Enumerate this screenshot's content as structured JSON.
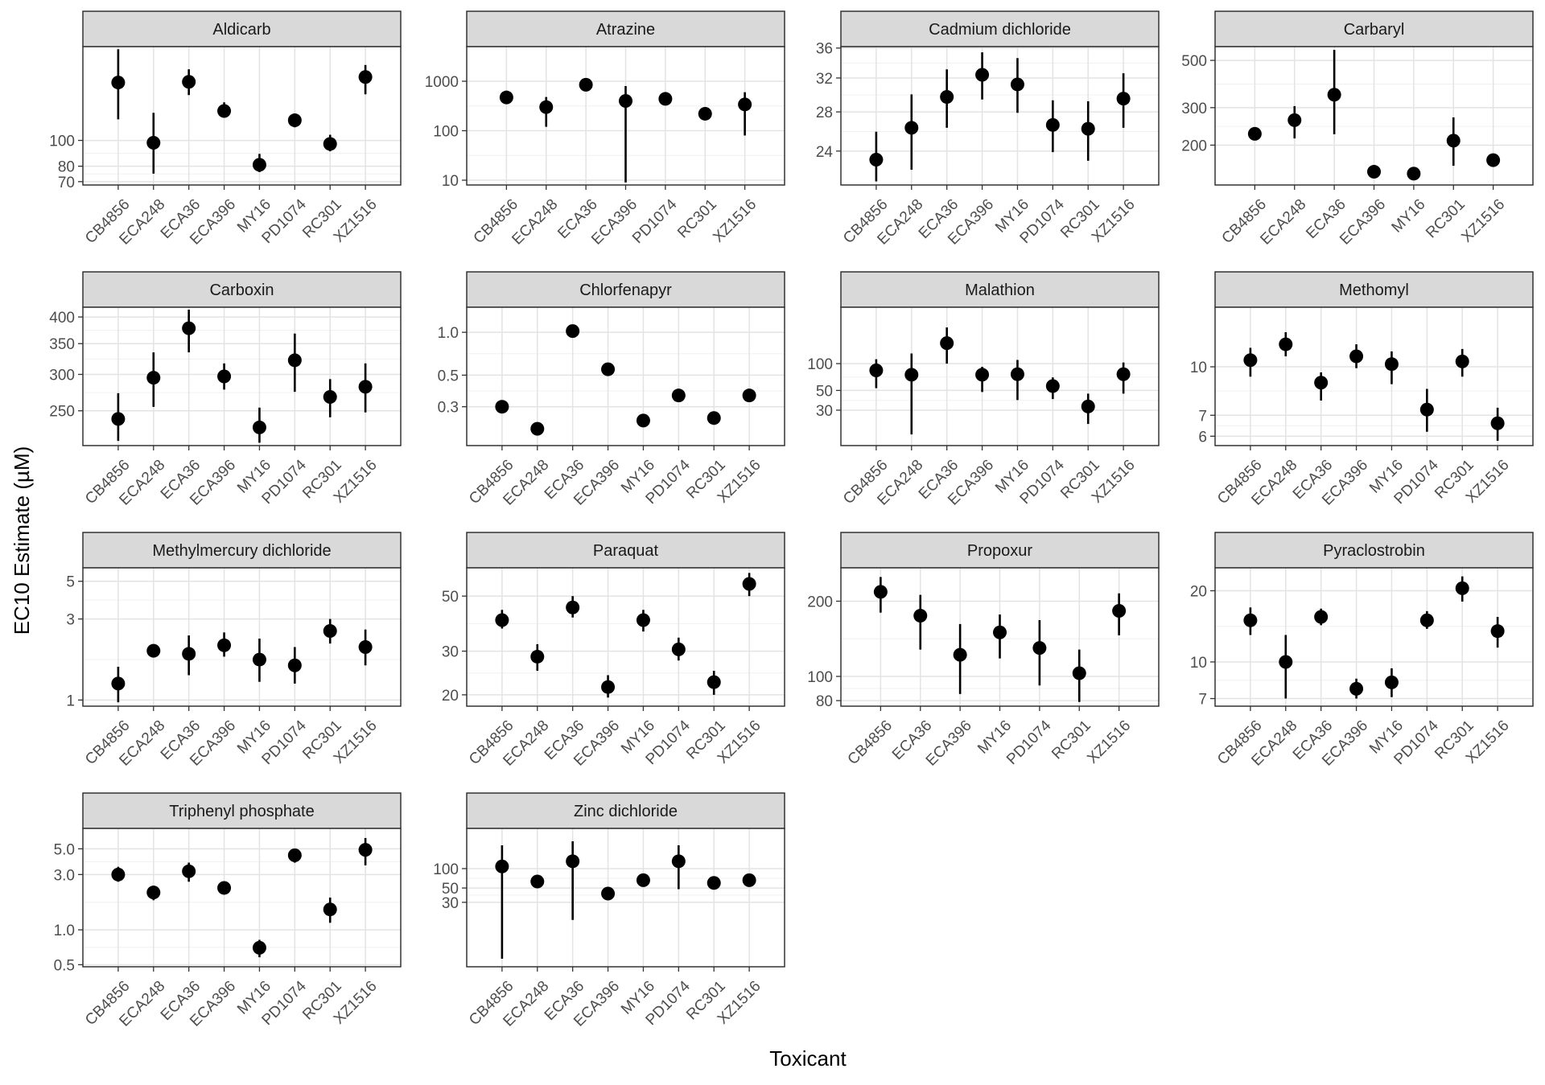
{
  "chart_data": {
    "type": "scatter",
    "subtype": "faceted point-range (point estimate with interval bars)",
    "xlabel": "Toxicant",
    "ylabel": "EC10 Estimate (µM)",
    "y_scale": "log",
    "grid": true,
    "legend": "none",
    "panels": [
      {
        "title": "Aldicarb",
        "ylim": [
          68,
          225
        ],
        "yticks": [
          70,
          80,
          100
        ],
        "points": [
          {
            "x": "CB4856",
            "y": 165,
            "lo": 120,
            "hi": 220
          },
          {
            "x": "ECA248",
            "y": 98,
            "lo": 75,
            "hi": 127
          },
          {
            "x": "ECA36",
            "y": 166,
            "lo": 148,
            "hi": 185
          },
          {
            "x": "ECA396",
            "y": 129,
            "lo": 122,
            "hi": 139
          },
          {
            "x": "MY16",
            "y": 81,
            "lo": 76,
            "hi": 89
          },
          {
            "x": "PD1074",
            "y": 119,
            "lo": 112,
            "hi": 126
          },
          {
            "x": "RC301",
            "y": 97,
            "lo": 91,
            "hi": 105
          },
          {
            "x": "XZ1516",
            "y": 173,
            "lo": 149,
            "hi": 192
          }
        ]
      },
      {
        "title": "Atrazine",
        "ylim": [
          8,
          5000
        ],
        "yticks": [
          10,
          100,
          1000
        ],
        "points": [
          {
            "x": "CB4856",
            "y": 470
          },
          {
            "x": "ECA248",
            "y": 300,
            "lo": 120,
            "hi": 480
          },
          {
            "x": "ECA36",
            "y": 850
          },
          {
            "x": "ECA396",
            "y": 400,
            "lo": 9,
            "hi": 800
          },
          {
            "x": "PD1074",
            "y": 440
          },
          {
            "x": "RC301",
            "y": 220
          },
          {
            "x": "XZ1516",
            "y": 340,
            "lo": 80,
            "hi": 600
          }
        ]
      },
      {
        "title": "Cadmium dichloride",
        "ylim": [
          21,
          36.2
        ],
        "yticks": [
          24,
          28,
          32,
          36
        ],
        "points": [
          {
            "x": "CB4856",
            "y": 23.2,
            "lo": 21.3,
            "hi": 25.9
          },
          {
            "x": "ECA248",
            "y": 26.3,
            "lo": 22.3,
            "hi": 30.0
          },
          {
            "x": "ECA36",
            "y": 29.7,
            "lo": 26.3,
            "hi": 33.1
          },
          {
            "x": "ECA396",
            "y": 32.4,
            "lo": 29.4,
            "hi": 35.4
          },
          {
            "x": "MY16",
            "y": 31.2,
            "lo": 27.9,
            "hi": 34.6
          },
          {
            "x": "PD1074",
            "y": 26.6,
            "lo": 23.9,
            "hi": 29.3
          },
          {
            "x": "RC301",
            "y": 26.2,
            "lo": 23.1,
            "hi": 29.2
          },
          {
            "x": "XZ1516",
            "y": 29.5,
            "lo": 26.3,
            "hi": 32.6
          }
        ]
      },
      {
        "title": "Carbaryl",
        "ylim": [
          130,
          580
        ],
        "yticks": [
          200,
          300,
          500
        ],
        "points": [
          {
            "x": "CB4856",
            "y": 226
          },
          {
            "x": "ECA248",
            "y": 262,
            "lo": 215,
            "hi": 305
          },
          {
            "x": "ECA36",
            "y": 345,
            "lo": 225,
            "hi": 560
          },
          {
            "x": "ECA396",
            "y": 150
          },
          {
            "x": "MY16",
            "y": 147
          },
          {
            "x": "RC301",
            "y": 210,
            "lo": 160,
            "hi": 270
          },
          {
            "x": "XZ1516",
            "y": 170
          }
        ]
      },
      {
        "title": "Carboxin",
        "ylim": [
          210,
          420
        ],
        "yticks": [
          250,
          300,
          350,
          400
        ],
        "points": [
          {
            "x": "CB4856",
            "y": 240,
            "lo": 215,
            "hi": 273
          },
          {
            "x": "ECA248",
            "y": 295,
            "lo": 255,
            "hi": 335
          },
          {
            "x": "ECA36",
            "y": 378,
            "lo": 335,
            "hi": 415
          },
          {
            "x": "ECA396",
            "y": 297,
            "lo": 278,
            "hi": 317
          },
          {
            "x": "MY16",
            "y": 230,
            "lo": 213,
            "hi": 254
          },
          {
            "x": "PD1074",
            "y": 322,
            "lo": 275,
            "hi": 368
          },
          {
            "x": "RC301",
            "y": 268,
            "lo": 242,
            "hi": 293
          },
          {
            "x": "XZ1516",
            "y": 282,
            "lo": 248,
            "hi": 317
          }
        ]
      },
      {
        "title": "Chlorfenapyr",
        "ylim": [
          0.16,
          1.5
        ],
        "yticks": [
          0.3,
          0.5,
          1.0
        ],
        "ytick_labels": [
          "0.3",
          "0.5",
          "1.0"
        ],
        "points": [
          {
            "x": "CB4856",
            "y": 0.3
          },
          {
            "x": "ECA248",
            "y": 0.21
          },
          {
            "x": "ECA36",
            "y": 1.02
          },
          {
            "x": "ECA396",
            "y": 0.55
          },
          {
            "x": "MY16",
            "y": 0.24
          },
          {
            "x": "PD1074",
            "y": 0.36
          },
          {
            "x": "RC301",
            "y": 0.25
          },
          {
            "x": "XZ1516",
            "y": 0.36
          }
        ]
      },
      {
        "title": "Malathion",
        "ylim": [
          12,
          430
        ],
        "yticks": [
          30,
          50,
          100
        ],
        "points": [
          {
            "x": "CB4856",
            "y": 84,
            "lo": 53,
            "hi": 112
          },
          {
            "x": "ECA248",
            "y": 75,
            "lo": 16,
            "hi": 130
          },
          {
            "x": "ECA36",
            "y": 170,
            "lo": 100,
            "hi": 255
          },
          {
            "x": "ECA396",
            "y": 75,
            "lo": 48,
            "hi": 92
          },
          {
            "x": "MY16",
            "y": 76,
            "lo": 39,
            "hi": 110
          },
          {
            "x": "PD1074",
            "y": 56,
            "lo": 40,
            "hi": 70
          },
          {
            "x": "RC301",
            "y": 33,
            "lo": 21,
            "hi": 46
          },
          {
            "x": "XZ1516",
            "y": 76,
            "lo": 46,
            "hi": 103
          }
        ]
      },
      {
        "title": "Methomyl",
        "ylim": [
          5.6,
          15.5
        ],
        "yticks": [
          6,
          7,
          10
        ],
        "points": [
          {
            "x": "CB4856",
            "y": 10.5,
            "lo": 9.3,
            "hi": 11.5
          },
          {
            "x": "ECA248",
            "y": 11.8,
            "lo": 10.8,
            "hi": 12.9
          },
          {
            "x": "ECA36",
            "y": 8.9,
            "lo": 7.8,
            "hi": 9.6
          },
          {
            "x": "ECA396",
            "y": 10.8,
            "lo": 9.9,
            "hi": 11.8
          },
          {
            "x": "MY16",
            "y": 10.2,
            "lo": 8.8,
            "hi": 11.2
          },
          {
            "x": "PD1074",
            "y": 7.3,
            "lo": 6.2,
            "hi": 8.5
          },
          {
            "x": "RC301",
            "y": 10.4,
            "lo": 9.3,
            "hi": 11.4
          },
          {
            "x": "XZ1516",
            "y": 6.6,
            "lo": 5.8,
            "hi": 7.4
          }
        ]
      },
      {
        "title": "Methylmercury dichloride",
        "ylim": [
          0.92,
          6.0
        ],
        "yticks": [
          1,
          3,
          5
        ],
        "points": [
          {
            "x": "CB4856",
            "y": 1.25,
            "lo": 0.97,
            "hi": 1.57
          },
          {
            "x": "ECA248",
            "y": 1.95
          },
          {
            "x": "ECA36",
            "y": 1.87,
            "lo": 1.4,
            "hi": 2.4
          },
          {
            "x": "ECA396",
            "y": 2.1,
            "lo": 1.8,
            "hi": 2.5
          },
          {
            "x": "MY16",
            "y": 1.73,
            "lo": 1.28,
            "hi": 2.3
          },
          {
            "x": "PD1074",
            "y": 1.6,
            "lo": 1.25,
            "hi": 2.05
          },
          {
            "x": "RC301",
            "y": 2.55,
            "lo": 2.15,
            "hi": 3.0
          },
          {
            "x": "XZ1516",
            "y": 2.05,
            "lo": 1.6,
            "hi": 2.6
          }
        ]
      },
      {
        "title": "Paraquat",
        "ylim": [
          18,
          65
        ],
        "yticks": [
          20,
          30,
          50
        ],
        "points": [
          {
            "x": "CB4856",
            "y": 40,
            "lo": 37,
            "hi": 44
          },
          {
            "x": "ECA248",
            "y": 28.5,
            "lo": 25,
            "hi": 32
          },
          {
            "x": "ECA36",
            "y": 45,
            "lo": 41,
            "hi": 50
          },
          {
            "x": "ECA396",
            "y": 21.5,
            "lo": 19.5,
            "hi": 24
          },
          {
            "x": "MY16",
            "y": 40,
            "lo": 36,
            "hi": 44
          },
          {
            "x": "PD1074",
            "y": 30.5,
            "lo": 27.5,
            "hi": 34
          },
          {
            "x": "RC301",
            "y": 22.5,
            "lo": 20,
            "hi": 25
          },
          {
            "x": "XZ1516",
            "y": 56,
            "lo": 50,
            "hi": 62
          }
        ]
      },
      {
        "title": "Propoxur",
        "ylim": [
          76,
          272
        ],
        "yticks": [
          80,
          100,
          200
        ],
        "points": [
          {
            "x": "CB4856",
            "y": 218,
            "lo": 180,
            "hi": 250
          },
          {
            "x": "ECA36",
            "y": 175,
            "lo": 128,
            "hi": 212
          },
          {
            "x": "ECA396",
            "y": 122,
            "lo": 85,
            "hi": 162
          },
          {
            "x": "MY16",
            "y": 150,
            "lo": 118,
            "hi": 177
          },
          {
            "x": "PD1074",
            "y": 130,
            "lo": 92,
            "hi": 168
          },
          {
            "x": "RC301",
            "y": 103,
            "lo": 79,
            "hi": 128
          },
          {
            "x": "XZ1516",
            "y": 183,
            "lo": 146,
            "hi": 215
          }
        ]
      },
      {
        "title": "Pyraclostrobin",
        "ylim": [
          6.5,
          25
        ],
        "yticks": [
          7,
          10,
          20
        ],
        "points": [
          {
            "x": "CB4856",
            "y": 15,
            "lo": 13,
            "hi": 17
          },
          {
            "x": "ECA248",
            "y": 10,
            "lo": 7,
            "hi": 13
          },
          {
            "x": "ECA36",
            "y": 15.5,
            "lo": 14.3,
            "hi": 16.8
          },
          {
            "x": "ECA396",
            "y": 7.7,
            "lo": 7.0,
            "hi": 8.5
          },
          {
            "x": "MY16",
            "y": 8.2,
            "lo": 7.1,
            "hi": 9.4
          },
          {
            "x": "PD1074",
            "y": 15,
            "lo": 13.8,
            "hi": 16.4
          },
          {
            "x": "RC301",
            "y": 20.5,
            "lo": 18,
            "hi": 23
          },
          {
            "x": "XZ1516",
            "y": 13.5,
            "lo": 11.5,
            "hi": 15.5
          }
        ]
      },
      {
        "title": "Triphenyl phosphate",
        "ylim": [
          0.48,
          7.5
        ],
        "yticks": [
          0.5,
          1.0,
          3.0,
          5.0
        ],
        "ytick_labels": [
          "0.5",
          "1.0",
          "3.0",
          "5.0"
        ],
        "points": [
          {
            "x": "CB4856",
            "y": 3.0,
            "lo": 2.6,
            "hi": 3.5
          },
          {
            "x": "ECA248",
            "y": 2.1,
            "lo": 1.8,
            "hi": 2.4
          },
          {
            "x": "ECA36",
            "y": 3.2,
            "lo": 2.6,
            "hi": 3.8
          },
          {
            "x": "ECA396",
            "y": 2.3
          },
          {
            "x": "MY16",
            "y": 0.7,
            "lo": 0.58,
            "hi": 0.82
          },
          {
            "x": "PD1074",
            "y": 4.4,
            "lo": 3.8,
            "hi": 5.0
          },
          {
            "x": "RC301",
            "y": 1.5,
            "lo": 1.15,
            "hi": 1.9
          },
          {
            "x": "XZ1516",
            "y": 4.9,
            "lo": 3.6,
            "hi": 6.2
          }
        ]
      },
      {
        "title": "Zinc dichloride",
        "ylim": [
          3,
          420
        ],
        "yticks": [
          30,
          50,
          100
        ],
        "points": [
          {
            "x": "CB4856",
            "y": 108,
            "lo": 4,
            "hi": 230
          },
          {
            "x": "ECA248",
            "y": 63
          },
          {
            "x": "ECA36",
            "y": 130,
            "lo": 16,
            "hi": 265
          },
          {
            "x": "ECA396",
            "y": 41
          },
          {
            "x": "MY16",
            "y": 66
          },
          {
            "x": "PD1074",
            "y": 130,
            "lo": 48,
            "hi": 230
          },
          {
            "x": "RC301",
            "y": 60
          },
          {
            "x": "XZ1516",
            "y": 66
          }
        ]
      }
    ]
  }
}
